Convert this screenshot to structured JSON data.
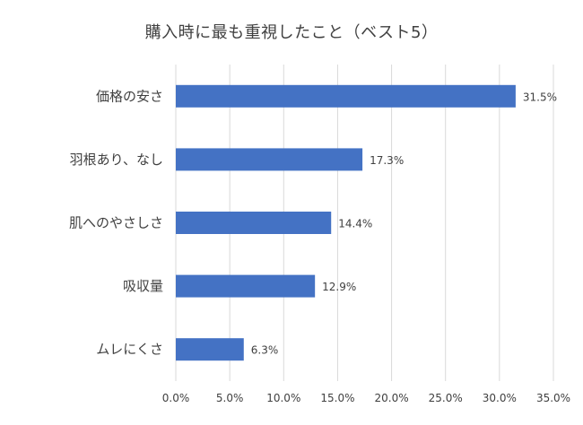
{
  "chart_data": {
    "type": "bar",
    "orientation": "horizontal",
    "title": "購入時に最も重視したこと（ベスト5）",
    "xlabel": "",
    "ylabel": "",
    "categories": [
      "価格の安さ",
      "羽根あり、なし",
      "肌へのやさしさ",
      "吸収量",
      "ムレにくさ"
    ],
    "values": [
      31.5,
      17.3,
      14.4,
      12.9,
      6.3
    ],
    "value_labels": [
      "31.5%",
      "17.3%",
      "14.4%",
      "12.9%",
      "6.3%"
    ],
    "xlim": [
      0,
      35
    ],
    "ticks": [
      0,
      5,
      10,
      15,
      20,
      25,
      30,
      35
    ],
    "tick_labels": [
      "0.0%",
      "5.0%",
      "10.0%",
      "15.0%",
      "20.0%",
      "25.0%",
      "30.0%",
      "35.0%"
    ],
    "grid": true,
    "legend": "none",
    "colors": {
      "bar": "#4472c4",
      "grid": "#d9d9d9",
      "text": "#404040"
    }
  }
}
